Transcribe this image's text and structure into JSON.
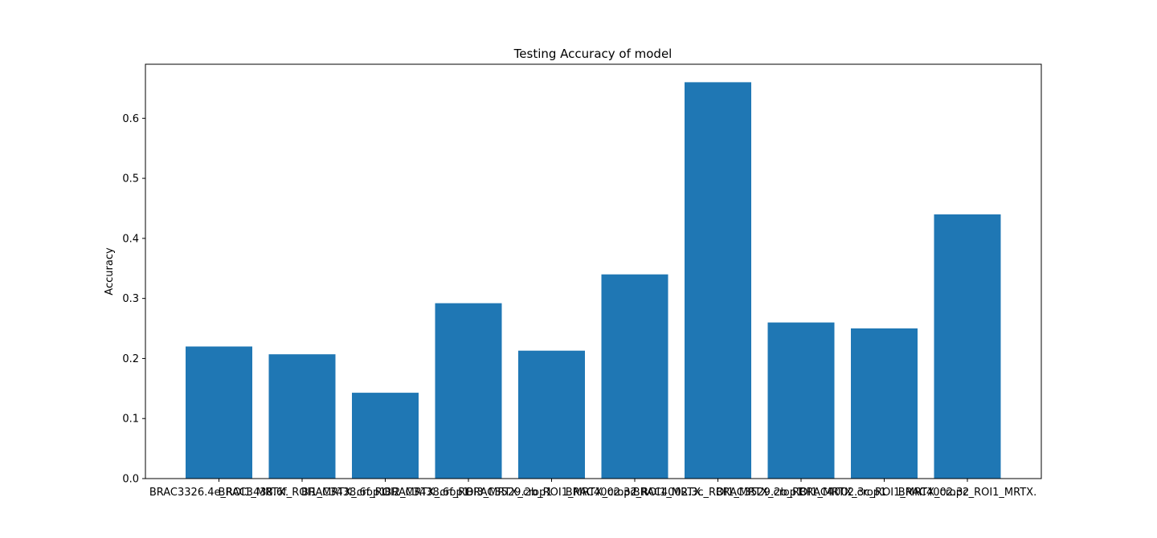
{
  "chart_data": {
    "type": "bar",
    "title": "Testing Accuracy of model",
    "xlabel": "",
    "ylabel": "Accuracy",
    "categories": [
      "BRAC3326.4e_ROI1_MRTX.",
      "BRAC3438.6f_ROI1_MRTX_crop1",
      "BRAC3438.6f_ROI2_MRTX_crop1",
      "BRAC3438.6f_ROI3_MRTX_crop1",
      "BRAC3529.2b_ROI1_MRTX_crop2",
      "BRAC4002.3c_ROI1_MRTX.",
      "BRAC4002.3c_ROI1_MRTX_crop1",
      "BRAC3529.2b_ROI1_MRTX_crop1",
      "BRAC4002.3c_ROI1_MRTX_crop2",
      "BRAC4002.3c_ROI1_MRTX."
    ],
    "values": [
      0.22,
      0.207,
      0.143,
      0.292,
      0.213,
      0.34,
      0.66,
      0.26,
      0.25,
      0.44
    ],
    "ylim": [
      0,
      0.69
    ],
    "yticks": [
      0.0,
      0.1,
      0.2,
      0.3,
      0.4,
      0.5,
      0.6
    ],
    "ytick_labels": [
      "0.0",
      "0.1",
      "0.2",
      "0.3",
      "0.4",
      "0.5",
      "0.6"
    ],
    "bar_color": "#1f77b4",
    "grid": false,
    "legend": "none"
  }
}
